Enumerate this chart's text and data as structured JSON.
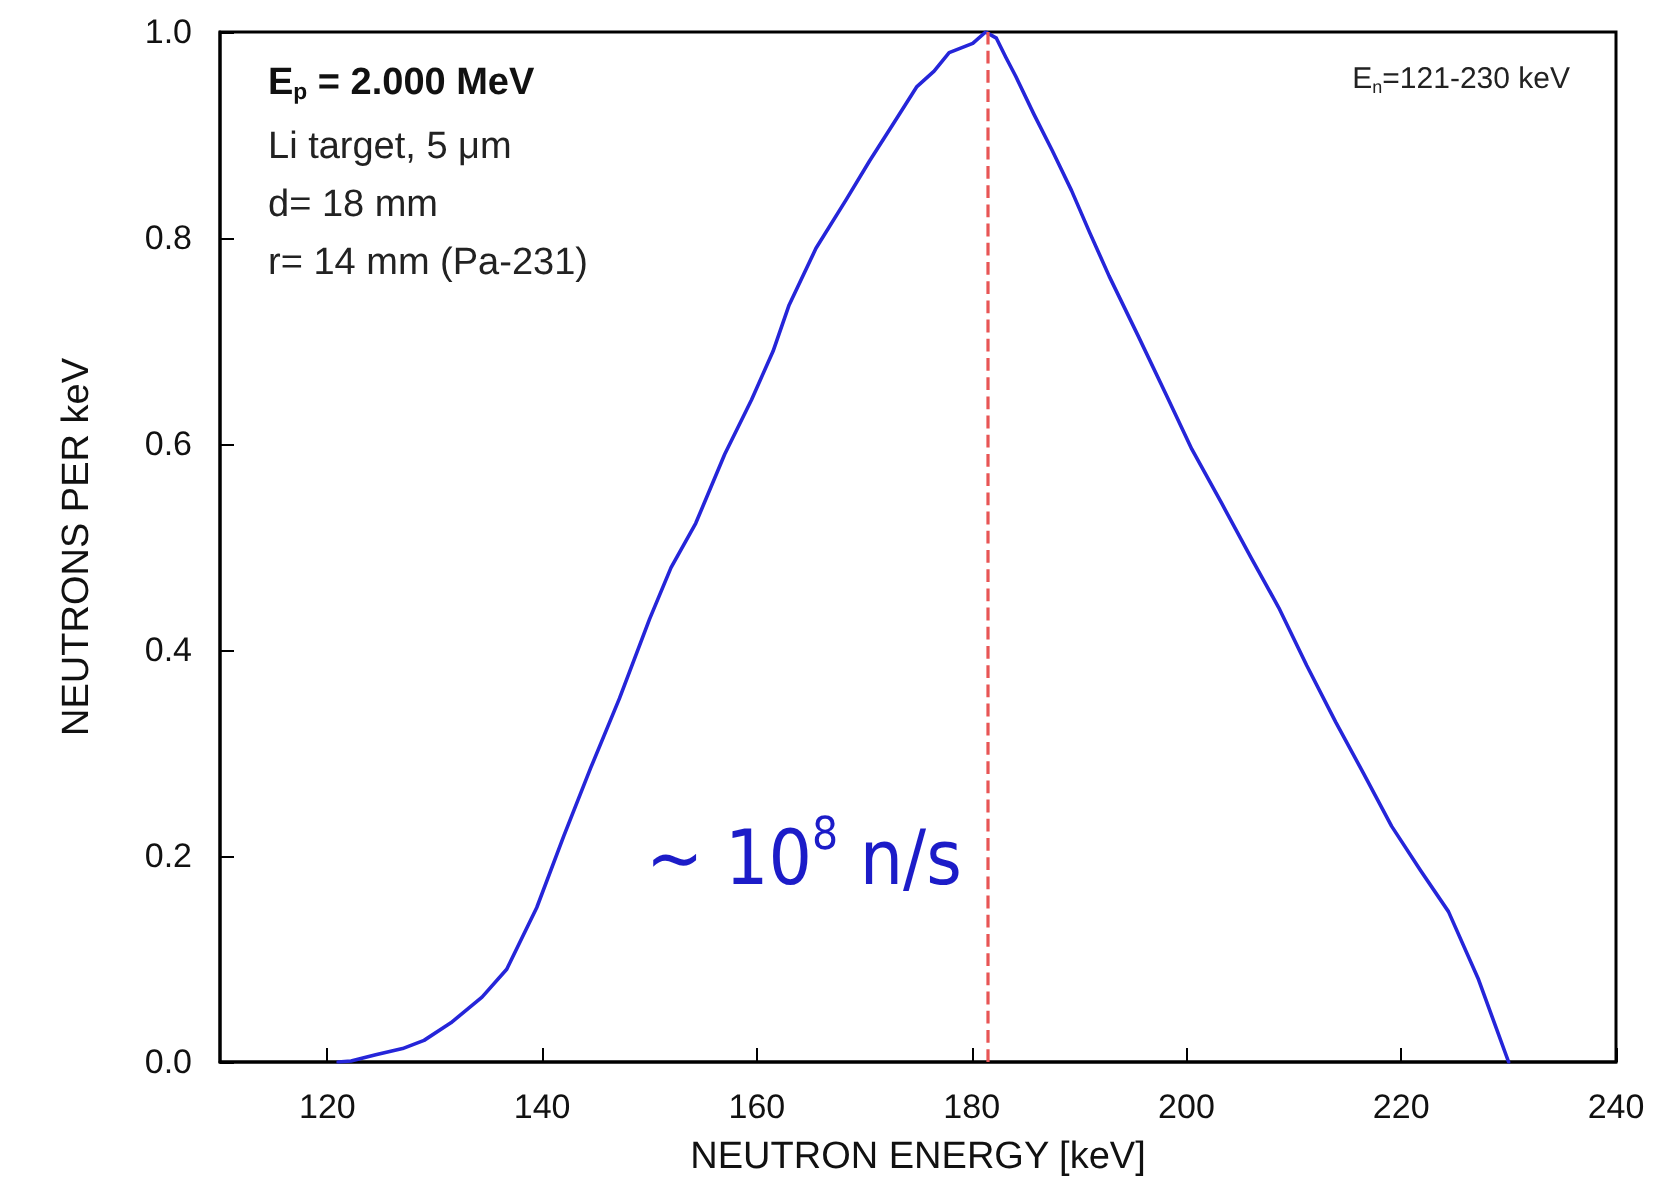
{
  "chart_data": {
    "type": "line",
    "xlabel": "NEUTRON ENERGY [keV]",
    "ylabel": "NEUTRONS PER keV",
    "annotations": [
      "E$_{p}$ = 2.000 MeV",
      "Li target, 5 μm",
      "d= 18 mm",
      "r= 14 mm (Pa-231)",
      "E$_{n}$=121-230 keV",
      "~ 10$^{8}$ n/s"
    ],
    "series": [
      {
        "color": "#2525d9",
        "x": [
          121,
          122.2,
          124.5,
          127,
          129,
          131.5,
          134.4,
          136.7,
          139.5,
          142,
          144.5,
          147.2,
          150,
          152,
          154.3,
          157,
          159.5,
          161.5,
          163,
          165.5,
          168.3,
          170.5,
          172.7,
          174.9,
          176.5,
          177.9,
          180.1,
          181.3,
          182.3,
          183.2,
          184.1,
          185.8,
          187.5,
          189.3,
          191,
          192.8,
          195.5,
          198.1,
          200.5,
          203.3,
          206,
          208.6,
          211.2,
          213.9,
          216.5,
          219.1,
          221.8,
          224.4,
          227.2,
          230
        ],
        "values": [
          0,
          0.001,
          0.007,
          0.013,
          0.021,
          0.038,
          0.063,
          0.09,
          0.15,
          0.219,
          0.285,
          0.353,
          0.43,
          0.48,
          0.523,
          0.59,
          0.643,
          0.69,
          0.735,
          0.79,
          0.837,
          0.875,
          0.911,
          0.947,
          0.962,
          0.98,
          0.989,
          1.0,
          0.994,
          0.975,
          0.957,
          0.92,
          0.885,
          0.846,
          0.805,
          0.763,
          0.705,
          0.648,
          0.595,
          0.542,
          0.49,
          0.441,
          0.385,
          0.33,
          0.28,
          0.229,
          0.186,
          0.146,
          0.08,
          0
        ]
      }
    ],
    "xlim": [
      110,
      240
    ],
    "xticks": [
      120,
      140,
      160,
      180,
      200,
      220,
      240
    ],
    "ylim": [
      0,
      1
    ],
    "yticks": [
      {
        "value": 0,
        "label": "0.0"
      },
      {
        "value": 0.2,
        "label": "0.2"
      },
      {
        "value": 0.4,
        "label": "0.4"
      },
      {
        "value": 0.6,
        "label": "0.6"
      },
      {
        "value": 0.8,
        "label": "0.8"
      },
      {
        "value": 1,
        "label": "1.0"
      }
    ],
    "ref_lines": [
      {
        "axis": "x",
        "value": 181.5,
        "color": "#e85555",
        "line_style": "dashed"
      }
    ],
    "grid": false,
    "marker": "none",
    "line_style": "solid"
  }
}
